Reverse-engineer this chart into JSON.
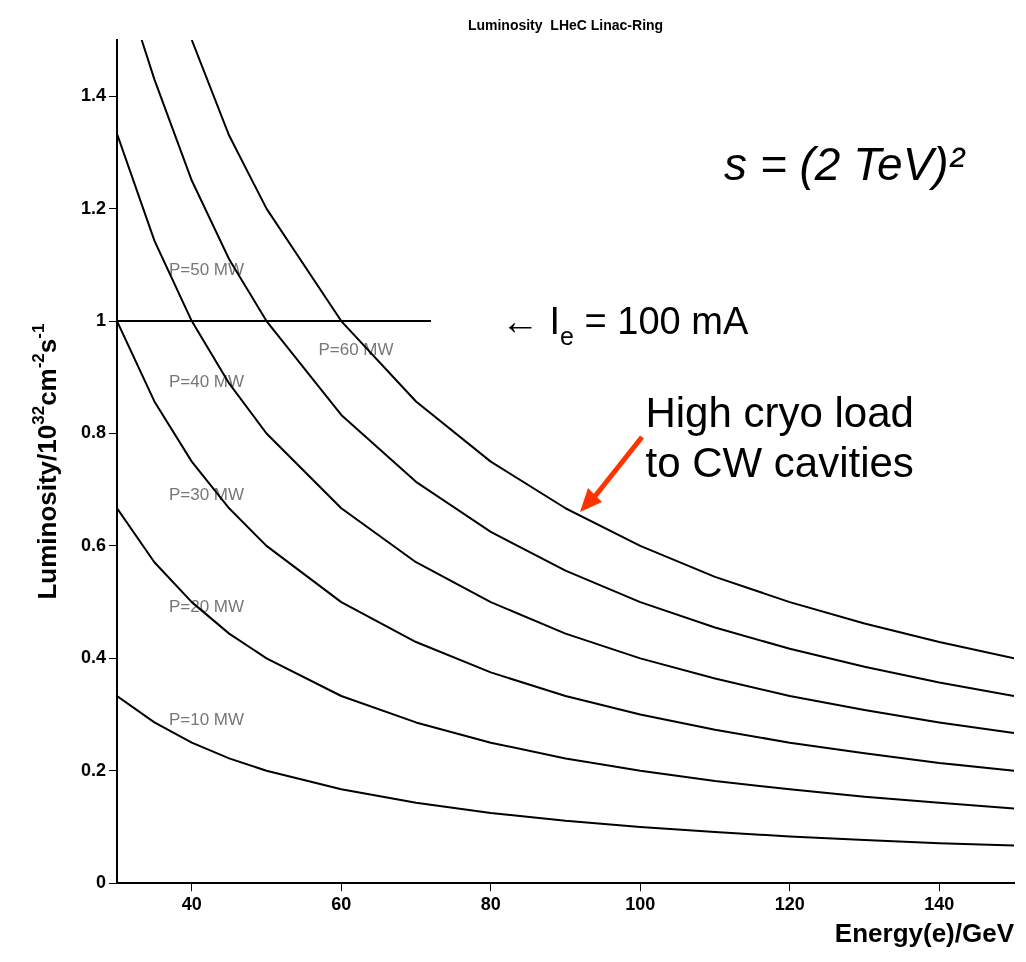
{
  "chart_data": {
    "type": "line",
    "title": "Luminosity  LHeC Linac-Ring",
    "xlabel": "Energy(e)/GeV",
    "ylabel": "Luminosity/10$^{32}$cm$^{-2}$s$^{-1}$",
    "xlim": [
      30,
      150
    ],
    "xticks": [
      40,
      60,
      80,
      100,
      120,
      140
    ],
    "ylim": [
      0,
      1.5
    ],
    "yticks": [
      0,
      0.2,
      0.4,
      0.6,
      0.8,
      1,
      1.2,
      1.4
    ],
    "grid": false,
    "legend": false,
    "marker": "none",
    "line_style": "solid",
    "series": [
      {
        "name": "P=60 MW",
        "color": "#000000",
        "x": [
          40,
          45,
          50,
          60,
          70,
          80,
          90,
          100,
          110,
          120,
          130,
          140,
          150
        ],
        "values": [
          1.5,
          1.33,
          1.2,
          1.0,
          0.857,
          0.75,
          0.667,
          0.6,
          0.545,
          0.5,
          0.462,
          0.429,
          0.4
        ]
      },
      {
        "name": "P=50 MW",
        "color": "#000000",
        "x": [
          33.3,
          35,
          40,
          45,
          50,
          60,
          70,
          80,
          90,
          100,
          110,
          120,
          130,
          140,
          150
        ],
        "values": [
          1.5,
          1.43,
          1.25,
          1.11,
          1.0,
          0.833,
          0.714,
          0.625,
          0.556,
          0.5,
          0.455,
          0.417,
          0.385,
          0.357,
          0.333
        ]
      },
      {
        "name": "P=40 MW",
        "color": "#000000",
        "x": [
          30,
          35,
          40,
          45,
          50,
          60,
          70,
          80,
          90,
          100,
          110,
          120,
          130,
          140,
          150
        ],
        "values": [
          1.333,
          1.143,
          1.0,
          0.889,
          0.8,
          0.667,
          0.571,
          0.5,
          0.444,
          0.4,
          0.364,
          0.333,
          0.308,
          0.286,
          0.267
        ]
      },
      {
        "name": "P=30 MW",
        "color": "#000000",
        "x": [
          30,
          35,
          40,
          45,
          50,
          60,
          70,
          80,
          90,
          100,
          110,
          120,
          130,
          140,
          150
        ],
        "values": [
          1.0,
          0.857,
          0.75,
          0.667,
          0.6,
          0.5,
          0.429,
          0.375,
          0.333,
          0.3,
          0.273,
          0.25,
          0.231,
          0.214,
          0.2
        ]
      },
      {
        "name": "P=20 MW",
        "color": "#000000",
        "x": [
          30,
          35,
          40,
          45,
          50,
          60,
          70,
          80,
          90,
          100,
          110,
          120,
          130,
          140,
          150
        ],
        "values": [
          0.667,
          0.571,
          0.5,
          0.444,
          0.4,
          0.333,
          0.286,
          0.25,
          0.222,
          0.2,
          0.182,
          0.167,
          0.154,
          0.143,
          0.133
        ]
      },
      {
        "name": "P=10 MW",
        "color": "#000000",
        "x": [
          30,
          35,
          40,
          45,
          50,
          60,
          70,
          80,
          90,
          100,
          110,
          120,
          130,
          140,
          150
        ],
        "values": [
          0.333,
          0.286,
          0.25,
          0.222,
          0.2,
          0.167,
          0.143,
          0.125,
          0.111,
          0.1,
          0.091,
          0.083,
          0.077,
          0.071,
          0.067
        ]
      },
      {
        "name": "← I$_{e}$ = 100 mA",
        "color": "#000000",
        "x": [
          30,
          72
        ],
        "values": [
          1,
          1
        ]
      }
    ],
    "annotations": [
      {
        "text": "High cryo load\nto CW cavities",
        "x": 92,
        "y": 0.66
      },
      "s = (2 TeV)²"
    ]
  }
}
